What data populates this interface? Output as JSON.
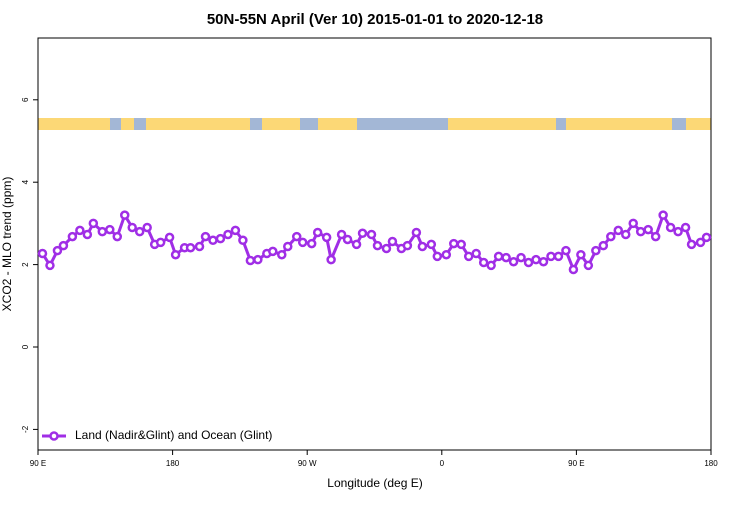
{
  "chart_data": {
    "type": "line",
    "title": "50N-55N April (Ver 10)   2015-01-01 to 2020-12-18",
    "x_label": "Longitude (deg E)",
    "y_label": "XCO2 - MLO trend (ppm)",
    "xlim": [
      90,
      540
    ],
    "ylim": [
      -2.5,
      7.5
    ],
    "xticks": [
      {
        "value": 90,
        "label": "90 E"
      },
      180,
      {
        "value": 270,
        "label": "90 W"
      },
      {
        "value": 360,
        "label": "0"
      },
      {
        "value": 450,
        "label": "90 E"
      },
      {
        "value": 540,
        "label": "180"
      }
    ],
    "yticks": [
      -2,
      0,
      2,
      4,
      6
    ],
    "legend": "bottom-left",
    "x": [
      93,
      98,
      103,
      107,
      113,
      118,
      123,
      127,
      133,
      138,
      143,
      148,
      153,
      158,
      163,
      168,
      172,
      178,
      182,
      188,
      192,
      198,
      202,
      207,
      212,
      217,
      222,
      227,
      232,
      237,
      243,
      247,
      253,
      257,
      263,
      267,
      273,
      277,
      283,
      286,
      293,
      297,
      303,
      307,
      313,
      317,
      323,
      327,
      333,
      337,
      343,
      347,
      353,
      357,
      363,
      368,
      373,
      378,
      383,
      388,
      393,
      398,
      403,
      408,
      413,
      418,
      423,
      428,
      433,
      438,
      443,
      448,
      453,
      458,
      463,
      468,
      473,
      478,
      483,
      488,
      493,
      498,
      503,
      508,
      513,
      518,
      523,
      527,
      533,
      537
    ],
    "series": [
      {
        "name": "Land (Nadir&Glint) and Ocean (Glint)",
        "color": "#a02ee6",
        "values": [
          2.27,
          1.98,
          2.34,
          2.46,
          2.68,
          2.83,
          2.73,
          3.0,
          2.8,
          2.85,
          2.68,
          3.2,
          2.9,
          2.8,
          2.9,
          2.49,
          2.54,
          2.66,
          2.24,
          2.41,
          2.41,
          2.44,
          2.68,
          2.59,
          2.63,
          2.73,
          2.83,
          2.59,
          2.1,
          2.12,
          2.27,
          2.32,
          2.24,
          2.44,
          2.68,
          2.54,
          2.51,
          2.78,
          2.66,
          2.12,
          2.73,
          2.61,
          2.49,
          2.76,
          2.73,
          2.46,
          2.39,
          2.56,
          2.39,
          2.46,
          2.78,
          2.44,
          2.49,
          2.2,
          2.24,
          2.51,
          2.49,
          2.2,
          2.27,
          2.05,
          1.98,
          2.2,
          2.17,
          2.07,
          2.17,
          2.05,
          2.12,
          2.07,
          2.2,
          2.2,
          2.34,
          1.88,
          2.24,
          1.98,
          2.34,
          2.46,
          2.68,
          2.83,
          2.73,
          3.0,
          2.8,
          2.85,
          2.68,
          3.2,
          2.9,
          2.8,
          2.9,
          2.49,
          2.54,
          2.66
        ]
      }
    ]
  }
}
